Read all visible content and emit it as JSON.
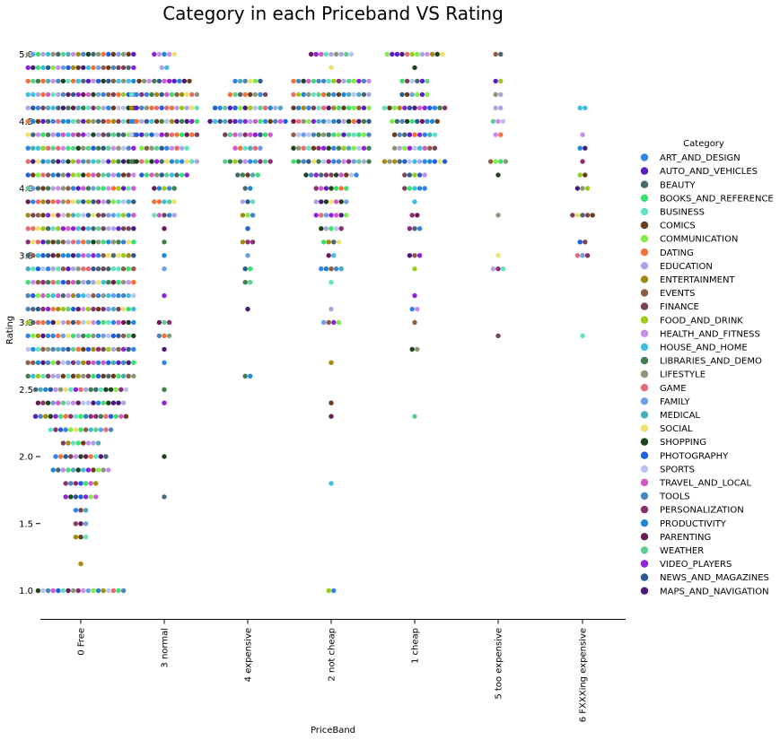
{
  "chart_data": {
    "type": "scatter",
    "subtype": "swarm",
    "title": "Category in each Priceband VS Rating",
    "xlabel": "PriceBand",
    "ylabel": "Rating",
    "ylim": [
      0.77,
      5.2
    ],
    "yticks": [
      "1.0",
      "1.5",
      "2.0",
      "2.5",
      "3.0",
      "3.5",
      "4.0",
      "4.5",
      "5.0"
    ],
    "categories": [
      "0 Free",
      "3 normal",
      "4 expensive",
      "2 not cheap",
      "1 cheap",
      "5 too expensive",
      "6 FXXXing expensive"
    ],
    "grid": false,
    "legend_title": "Category",
    "legend_position": "right",
    "hue_order": [
      {
        "name": "ART_AND_DESIGN",
        "color": "#2e86e8"
      },
      {
        "name": "AUTO_AND_VEHICLES",
        "color": "#5b1fc7"
      },
      {
        "name": "BEAUTY",
        "color": "#456a74"
      },
      {
        "name": "BOOKS_AND_REFERENCE",
        "color": "#3be06e"
      },
      {
        "name": "BUSINESS",
        "color": "#62e2c0"
      },
      {
        "name": "COMICS",
        "color": "#6d3d1b"
      },
      {
        "name": "COMMUNICATION",
        "color": "#82ec48"
      },
      {
        "name": "DATING",
        "color": "#f47237"
      },
      {
        "name": "EDUCATION",
        "color": "#aca6e0"
      },
      {
        "name": "ENTERTAINMENT",
        "color": "#a38b12"
      },
      {
        "name": "EVENTS",
        "color": "#8e5f46"
      },
      {
        "name": "FINANCE",
        "color": "#7a4358"
      },
      {
        "name": "FOOD_AND_DRINK",
        "color": "#9ccb1b"
      },
      {
        "name": "HEALTH_AND_FITNESS",
        "color": "#c68ee6"
      },
      {
        "name": "HOUSE_AND_HOME",
        "color": "#3ebee0"
      },
      {
        "name": "LIBRARIES_AND_DEMO",
        "color": "#3f7e4f"
      },
      {
        "name": "LIFESTYLE",
        "color": "#8b9779"
      },
      {
        "name": "GAME",
        "color": "#e66c73"
      },
      {
        "name": "FAMILY",
        "color": "#6f9de6"
      },
      {
        "name": "MEDICAL",
        "color": "#4cabbd"
      },
      {
        "name": "SOCIAL",
        "color": "#efe06c"
      },
      {
        "name": "SHOPPING",
        "color": "#1e4420"
      },
      {
        "name": "PHOTOGRAPHY",
        "color": "#2060e0"
      },
      {
        "name": "SPORTS",
        "color": "#b7c4f0"
      },
      {
        "name": "TRAVEL_AND_LOCAL",
        "color": "#d25ac9"
      },
      {
        "name": "TOOLS",
        "color": "#4a86c0"
      },
      {
        "name": "PERSONALIZATION",
        "color": "#8b2e74"
      },
      {
        "name": "PRODUCTIVITY",
        "color": "#1e88d6"
      },
      {
        "name": "PARENTING",
        "color": "#6c1c54"
      },
      {
        "name": "WEATHER",
        "color": "#5fcf8f"
      },
      {
        "name": "VIDEO_PLAYERS",
        "color": "#8f22d8"
      },
      {
        "name": "NEWS_AND_MAGAZINES",
        "color": "#2d5a92"
      },
      {
        "name": "MAPS_AND_NAVIGATION",
        "color": "#4a1a7a"
      }
    ],
    "groups": [
      {
        "band": "0 Free",
        "points": [
          {
            "y": 5.0,
            "n": 22
          },
          {
            "y": 4.9,
            "n": 22
          },
          {
            "y": 4.8,
            "n": 22
          },
          {
            "y": 4.7,
            "n": 22
          },
          {
            "y": 4.6,
            "n": 22
          },
          {
            "y": 4.5,
            "n": 22
          },
          {
            "y": 4.4,
            "n": 22
          },
          {
            "y": 4.3,
            "n": 22
          },
          {
            "y": 4.2,
            "n": 22
          },
          {
            "y": 4.1,
            "n": 22
          },
          {
            "y": 4.0,
            "n": 22
          },
          {
            "y": 3.9,
            "n": 22
          },
          {
            "y": 3.8,
            "n": 22
          },
          {
            "y": 3.7,
            "n": 22
          },
          {
            "y": 3.6,
            "n": 22
          },
          {
            "y": 3.5,
            "n": 22
          },
          {
            "y": 3.4,
            "n": 22
          },
          {
            "y": 3.3,
            "n": 22
          },
          {
            "y": 3.2,
            "n": 22
          },
          {
            "y": 3.1,
            "n": 22
          },
          {
            "y": 3.0,
            "n": 22
          },
          {
            "y": 2.9,
            "n": 22
          },
          {
            "y": 2.8,
            "n": 22
          },
          {
            "y": 2.7,
            "n": 22
          },
          {
            "y": 2.6,
            "n": 22
          },
          {
            "y": 2.5,
            "n": 19
          },
          {
            "y": 2.4,
            "n": 18
          },
          {
            "y": 2.3,
            "n": 19
          },
          {
            "y": 2.2,
            "n": 13
          },
          {
            "y": 2.1,
            "n": 8
          },
          {
            "y": 2.0,
            "n": 11
          },
          {
            "y": 1.9,
            "n": 12
          },
          {
            "y": 1.8,
            "n": 7
          },
          {
            "y": 1.7,
            "n": 7
          },
          {
            "y": 1.6,
            "n": 3
          },
          {
            "y": 1.5,
            "n": 3
          },
          {
            "y": 1.4,
            "n": 3
          },
          {
            "y": 1.2,
            "n": 1
          },
          {
            "y": 1.0,
            "n": 18
          }
        ]
      },
      {
        "band": "3 normal",
        "points": [
          {
            "y": 5.0,
            "n": 5
          },
          {
            "y": 4.9,
            "n": 2
          },
          {
            "y": 4.8,
            "n": 11
          },
          {
            "y": 4.7,
            "n": 14
          },
          {
            "y": 4.6,
            "n": 14
          },
          {
            "y": 4.5,
            "n": 14
          },
          {
            "y": 4.4,
            "n": 14
          },
          {
            "y": 4.3,
            "n": 10
          },
          {
            "y": 4.2,
            "n": 14
          },
          {
            "y": 4.1,
            "n": 10
          },
          {
            "y": 4.0,
            "n": 5
          },
          {
            "y": 3.9,
            "n": 5
          },
          {
            "y": 3.8,
            "n": 5
          },
          {
            "y": 3.7,
            "n": 1
          },
          {
            "y": 3.6,
            "n": 1
          },
          {
            "y": 3.5,
            "n": 1
          },
          {
            "y": 3.4,
            "n": 1
          },
          {
            "y": 3.2,
            "n": 1
          },
          {
            "y": 3.0,
            "n": 3
          },
          {
            "y": 2.9,
            "n": 3
          },
          {
            "y": 2.8,
            "n": 1
          },
          {
            "y": 2.7,
            "n": 1
          },
          {
            "y": 2.5,
            "n": 1
          },
          {
            "y": 2.4,
            "n": 1
          },
          {
            "y": 2.0,
            "n": 1
          },
          {
            "y": 1.7,
            "n": 1
          }
        ]
      },
      {
        "band": "4 expensive",
        "points": [
          {
            "y": 4.8,
            "n": 6
          },
          {
            "y": 4.7,
            "n": 8
          },
          {
            "y": 4.6,
            "n": 14
          },
          {
            "y": 4.5,
            "n": 16
          },
          {
            "y": 4.4,
            "n": 10
          },
          {
            "y": 4.3,
            "n": 6
          },
          {
            "y": 4.2,
            "n": 10
          },
          {
            "y": 4.1,
            "n": 5
          },
          {
            "y": 4.0,
            "n": 2
          },
          {
            "y": 3.9,
            "n": 3
          },
          {
            "y": 3.8,
            "n": 3
          },
          {
            "y": 3.7,
            "n": 1
          },
          {
            "y": 3.6,
            "n": 3
          },
          {
            "y": 3.5,
            "n": 1
          },
          {
            "y": 3.4,
            "n": 2
          },
          {
            "y": 3.3,
            "n": 2
          },
          {
            "y": 3.1,
            "n": 1
          },
          {
            "y": 2.6,
            "n": 2
          }
        ]
      },
      {
        "band": "2 not cheap",
        "points": [
          {
            "y": 5.0,
            "n": 9
          },
          {
            "y": 4.9,
            "n": 1
          },
          {
            "y": 4.8,
            "n": 16
          },
          {
            "y": 4.7,
            "n": 16
          },
          {
            "y": 4.6,
            "n": 16
          },
          {
            "y": 4.5,
            "n": 16
          },
          {
            "y": 4.4,
            "n": 16
          },
          {
            "y": 4.3,
            "n": 16
          },
          {
            "y": 4.2,
            "n": 16
          },
          {
            "y": 4.1,
            "n": 11
          },
          {
            "y": 4.0,
            "n": 7
          },
          {
            "y": 3.9,
            "n": 7
          },
          {
            "y": 3.8,
            "n": 7
          },
          {
            "y": 3.7,
            "n": 5
          },
          {
            "y": 3.6,
            "n": 4
          },
          {
            "y": 3.5,
            "n": 2
          },
          {
            "y": 3.4,
            "n": 5
          },
          {
            "y": 3.3,
            "n": 1
          },
          {
            "y": 3.1,
            "n": 1
          },
          {
            "y": 3.0,
            "n": 4
          },
          {
            "y": 2.7,
            "n": 1
          },
          {
            "y": 2.4,
            "n": 1
          },
          {
            "y": 2.3,
            "n": 1
          },
          {
            "y": 1.8,
            "n": 1
          },
          {
            "y": 1.0,
            "n": 2
          }
        ]
      },
      {
        "band": "1 cheap",
        "points": [
          {
            "y": 5.0,
            "n": 12
          },
          {
            "y": 4.9,
            "n": 1
          },
          {
            "y": 4.8,
            "n": 6
          },
          {
            "y": 4.7,
            "n": 6
          },
          {
            "y": 4.6,
            "n": 13
          },
          {
            "y": 4.5,
            "n": 10
          },
          {
            "y": 4.4,
            "n": 9
          },
          {
            "y": 4.3,
            "n": 9
          },
          {
            "y": 4.2,
            "n": 13
          },
          {
            "y": 4.1,
            "n": 5
          },
          {
            "y": 4.0,
            "n": 5
          },
          {
            "y": 3.9,
            "n": 1
          },
          {
            "y": 3.8,
            "n": 2
          },
          {
            "y": 3.7,
            "n": 3
          },
          {
            "y": 3.5,
            "n": 3
          },
          {
            "y": 3.4,
            "n": 1
          },
          {
            "y": 3.2,
            "n": 1
          },
          {
            "y": 3.1,
            "n": 2
          },
          {
            "y": 3.0,
            "n": 1
          },
          {
            "y": 2.8,
            "n": 2
          },
          {
            "y": 2.3,
            "n": 1
          }
        ]
      },
      {
        "band": "5 too expensive",
        "points": [
          {
            "y": 5.0,
            "n": 2
          },
          {
            "y": 4.8,
            "n": 2
          },
          {
            "y": 4.7,
            "n": 2
          },
          {
            "y": 4.6,
            "n": 2
          },
          {
            "y": 4.5,
            "n": 3
          },
          {
            "y": 4.4,
            "n": 2
          },
          {
            "y": 4.2,
            "n": 4
          },
          {
            "y": 4.1,
            "n": 1
          },
          {
            "y": 3.8,
            "n": 1
          },
          {
            "y": 3.5,
            "n": 1
          },
          {
            "y": 3.4,
            "n": 3
          },
          {
            "y": 2.9,
            "n": 1
          }
        ]
      },
      {
        "band": "6 FXXXing expensive",
        "points": [
          {
            "y": 4.6,
            "n": 2
          },
          {
            "y": 4.4,
            "n": 1
          },
          {
            "y": 4.3,
            "n": 2
          },
          {
            "y": 4.2,
            "n": 1
          },
          {
            "y": 4.1,
            "n": 2
          },
          {
            "y": 4.0,
            "n": 3
          },
          {
            "y": 3.8,
            "n": 5
          },
          {
            "y": 3.6,
            "n": 2
          },
          {
            "y": 3.5,
            "n": 3
          },
          {
            "y": 2.9,
            "n": 1
          }
        ]
      }
    ]
  }
}
